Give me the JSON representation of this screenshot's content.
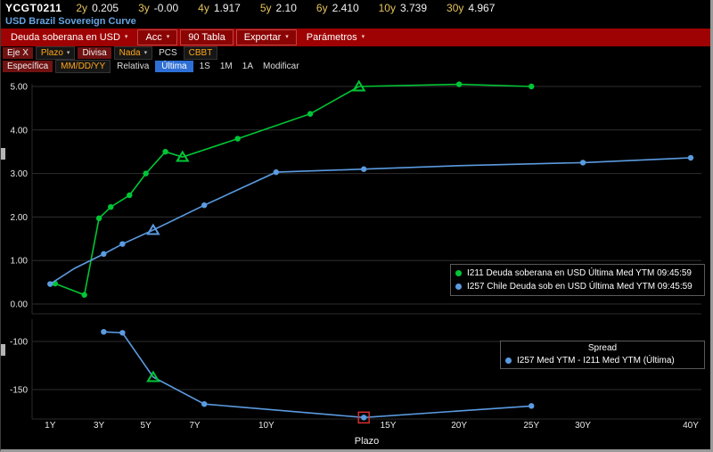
{
  "topbar": {
    "code": "YCGT0211",
    "rates": [
      {
        "tenor": "2y",
        "value": "0.205"
      },
      {
        "tenor": "3y",
        "value": "-0.00"
      },
      {
        "tenor": "4y",
        "value": "1.917"
      },
      {
        "tenor": "5y",
        "value": "2.10"
      },
      {
        "tenor": "6y",
        "value": "2.410"
      },
      {
        "tenor": "10y",
        "value": "3.739"
      },
      {
        "tenor": "30y",
        "value": "4.967"
      }
    ]
  },
  "title": "USD Brazil Sovereign Curve",
  "menu": {
    "items": [
      {
        "label": "Deuda soberana en USD",
        "name": "menu-curve-selector",
        "dropdown": true,
        "chip": false
      },
      {
        "label": "Acc",
        "name": "menu-acc",
        "dropdown": true,
        "chip": true
      },
      {
        "label": "90 Tabla",
        "name": "menu-tabla",
        "dropdown": false,
        "chip": true
      },
      {
        "label": "Exportar",
        "name": "menu-exportar",
        "dropdown": true,
        "chip": true
      },
      {
        "label": "Parámetros",
        "name": "menu-parametros",
        "dropdown": true,
        "chip": false
      }
    ]
  },
  "settings_row1": [
    {
      "text": "Eje X",
      "style": "label",
      "name": "x-axis-label"
    },
    {
      "text": "Plazo",
      "style": "field",
      "caret": true,
      "name": "x-axis-select"
    },
    {
      "text": "Divisa",
      "style": "label",
      "name": "currency-label"
    },
    {
      "text": "Nada",
      "style": "field",
      "caret": true,
      "name": "currency-select"
    },
    {
      "text": "PCS",
      "style": "text",
      "name": "pcs-label"
    },
    {
      "text": "CBBT",
      "style": "field",
      "name": "pcs-source-select"
    }
  ],
  "settings_row2": [
    {
      "text": "Específica",
      "style": "label",
      "name": "specific-date-label"
    },
    {
      "text": "MM/DD/YY",
      "style": "field",
      "name": "date-input"
    },
    {
      "text": "Relativa",
      "style": "text",
      "name": "relative-label"
    },
    {
      "text": "Última",
      "style": "selected",
      "name": "relative-ultima-option"
    },
    {
      "text": "1S",
      "style": "action",
      "name": "relative-1s-option"
    },
    {
      "text": "1M",
      "style": "action",
      "name": "relative-1m-option"
    },
    {
      "text": "1A",
      "style": "action",
      "name": "relative-1a-option"
    },
    {
      "text": "Modificar",
      "style": "action",
      "name": "modify-button"
    }
  ],
  "colors": {
    "green": "#00c636",
    "blue": "#5b9be0",
    "menu_red": "#9e0202",
    "amber": "#ffa61a",
    "selected_blue": "#2e6fd6",
    "title_blue": "#66a3e0",
    "selection_red": "#e03030",
    "grid": "#2e2e2e"
  },
  "chart_data": [
    {
      "type": "line",
      "title": "",
      "xlabel": "Plazo",
      "ylabel": "",
      "ylim": [
        -0.25,
        5.2
      ],
      "x_ticks": [
        {
          "label": "1Y",
          "years": 1,
          "f": 0.027
        },
        {
          "label": "3Y",
          "years": 3,
          "f": 0.1
        },
        {
          "label": "5Y",
          "years": 5,
          "f": 0.17
        },
        {
          "label": "7Y",
          "years": 7,
          "f": 0.243
        },
        {
          "label": "10Y",
          "years": 10,
          "f": 0.35
        },
        {
          "label": "15Y",
          "years": 15,
          "f": 0.532
        },
        {
          "label": "20Y",
          "years": 20,
          "f": 0.638
        },
        {
          "label": "25Y",
          "years": 25,
          "f": 0.746
        },
        {
          "label": "30Y",
          "years": 30,
          "f": 0.823
        },
        {
          "label": "40Y",
          "years": 40,
          "f": 0.984
        }
      ],
      "y_grid": [
        {
          "v": 0,
          "label": "0.00"
        },
        {
          "v": 1,
          "label": "1.00"
        },
        {
          "v": 2,
          "label": "2.00"
        },
        {
          "v": 3,
          "label": "3.00"
        },
        {
          "v": 4,
          "label": "4.00"
        },
        {
          "v": 5,
          "label": "5.00"
        }
      ],
      "legend_position": "right-middle",
      "series": [
        {
          "id": "I211",
          "name": "I211 Deuda soberana en USD Última Med YTM 09:45:59",
          "color": "#00c636",
          "points": [
            [
              1.2,
              0.47,
              "d"
            ],
            [
              2.4,
              0.21,
              "d"
            ],
            [
              3.0,
              1.97,
              "d"
            ],
            [
              3.5,
              2.23,
              "d"
            ],
            [
              4.3,
              2.5,
              "d"
            ],
            [
              5.0,
              3.0,
              "d"
            ],
            [
              5.8,
              3.5,
              "d"
            ],
            [
              6.5,
              3.38,
              "t"
            ],
            [
              8.8,
              3.8,
              "d"
            ],
            [
              11.8,
              4.37,
              "d"
            ],
            [
              13.8,
              5.0,
              "t"
            ],
            [
              20,
              5.05,
              "d"
            ],
            [
              25,
              5.0,
              "d"
            ]
          ]
        },
        {
          "id": "I257",
          "name": "I257 Chile Deuda sob en USD Última Med YTM 09:45:59",
          "color": "#5b9be0",
          "points": [
            [
              1.0,
              0.46,
              "d"
            ],
            [
              2.0,
              0.82,
              null
            ],
            [
              3.2,
              1.15,
              "d"
            ],
            [
              4.0,
              1.38,
              "d"
            ],
            [
              5.3,
              1.7,
              "t"
            ],
            [
              7.4,
              2.27,
              "d"
            ],
            [
              10.4,
              3.03,
              "d"
            ],
            [
              14,
              3.1,
              "d"
            ],
            [
              20,
              3.18,
              null
            ],
            [
              30,
              3.25,
              "d"
            ],
            [
              40,
              3.36,
              "d"
            ]
          ]
        }
      ]
    },
    {
      "type": "line",
      "legend_title": "Spread",
      "ylim": [
        -181,
        -77
      ],
      "y_grid": [
        {
          "v": -100,
          "label": "-100"
        },
        {
          "v": -150,
          "label": "-150"
        }
      ],
      "legend_position": "right-top",
      "series": [
        {
          "id": "spread",
          "name": "I257 Med YTM - I211 Med YTM (Última)",
          "color": "#5b9be0",
          "points": [
            [
              3.2,
              -90,
              "d"
            ],
            [
              4.0,
              -91,
              "d"
            ],
            [
              5.3,
              -137,
              "t",
              "#00c636"
            ],
            [
              7.4,
              -165,
              "d"
            ],
            [
              14,
              -179,
              "s"
            ],
            [
              25,
              -167,
              "d"
            ]
          ]
        }
      ]
    }
  ]
}
